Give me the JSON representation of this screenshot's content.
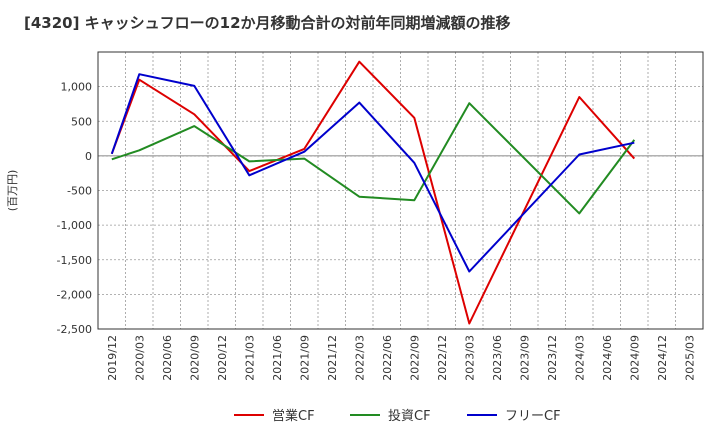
{
  "chart_data": {
    "type": "line",
    "title": "[4320]  キャッシュフローの12か月移動合計の対前年同期増減額の推移",
    "ylabel": "(百万円)",
    "xlabel": "",
    "x": [
      "2019/12",
      "2020/03",
      "2020/06",
      "2020/09",
      "2020/12",
      "2021/03",
      "2021/06",
      "2021/09",
      "2021/12",
      "2022/03",
      "2022/06",
      "2022/09",
      "2022/12",
      "2023/03",
      "2023/06",
      "2023/09",
      "2023/12",
      "2024/03",
      "2024/06",
      "2024/09",
      "2024/12",
      "2025/03"
    ],
    "ylim": [
      -2500,
      1500
    ],
    "yticks": [
      1000,
      500,
      0,
      -500,
      -1000,
      -1500,
      -2000,
      -2500
    ],
    "ytick_labels": [
      "1,000",
      "500",
      "0",
      "-500",
      "-1,000",
      "-1,500",
      "-2,000",
      "-2,500"
    ],
    "grid": true,
    "legend_position": "bottom",
    "series": [
      {
        "name": "営業CF",
        "color": "#dd0000",
        "values": [
          30,
          1100,
          null,
          600,
          null,
          -220,
          null,
          100,
          null,
          1360,
          null,
          550,
          null,
          -2420,
          null,
          null,
          null,
          850,
          null,
          -40,
          null,
          null
        ]
      },
      {
        "name": "投資CF",
        "color": "#228B22",
        "values": [
          -50,
          80,
          null,
          430,
          null,
          -80,
          null,
          -40,
          null,
          -590,
          null,
          -640,
          null,
          760,
          null,
          null,
          null,
          -830,
          null,
          230,
          null,
          null
        ]
      },
      {
        "name": "フリーCF",
        "color": "#0000cc",
        "values": [
          30,
          1180,
          null,
          1010,
          null,
          -280,
          null,
          60,
          null,
          770,
          null,
          -100,
          null,
          -1670,
          null,
          null,
          null,
          20,
          null,
          190,
          null,
          null
        ]
      }
    ]
  }
}
